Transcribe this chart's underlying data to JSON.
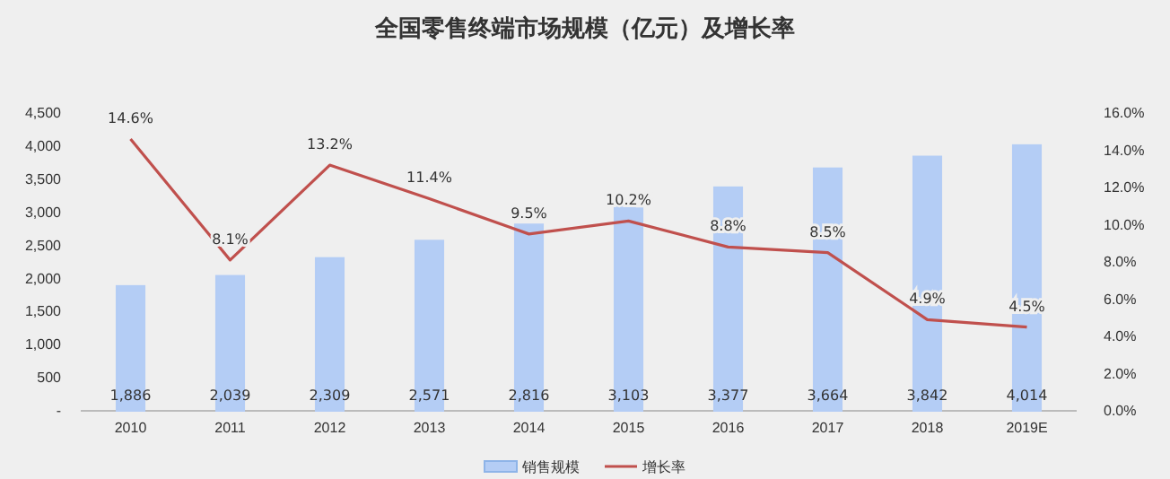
{
  "chart_data": {
    "type": "bar",
    "title": "全国零售终端市场规模（亿元）及增长率",
    "categories": [
      "2010",
      "2011",
      "2012",
      "2013",
      "2014",
      "2015",
      "2016",
      "2017",
      "2018",
      "2019E"
    ],
    "series": [
      {
        "name": "销售规模",
        "color": "#b4cdf5",
        "values": [
          1886,
          2039,
          2309,
          2571,
          2816,
          3103,
          3377,
          3664,
          3842,
          4014
        ],
        "value_labels": [
          "1,886",
          "2,039",
          "2,309",
          "2,571",
          "2,816",
          "3,103",
          "3,377",
          "3,664",
          "3,842",
          "4,014"
        ]
      },
      {
        "name": "增长率",
        "type": "line",
        "axis": "y2",
        "color": "#c0504d",
        "values": [
          14.6,
          8.1,
          13.2,
          11.4,
          9.5,
          10.2,
          8.8,
          8.5,
          4.9,
          4.5
        ],
        "value_labels": [
          "14.6%",
          "8.1%",
          "13.2%",
          "11.4%",
          "9.5%",
          "10.2%",
          "8.8%",
          "8.5%",
          "4.9%",
          "4.5%"
        ]
      }
    ],
    "ylim": [
      0,
      4500
    ],
    "yticks": [
      {
        "value": 0,
        "label": "-"
      },
      {
        "value": 500,
        "label": "500"
      },
      {
        "value": 1000,
        "label": "1,000"
      },
      {
        "value": 1500,
        "label": "1,500"
      },
      {
        "value": 2000,
        "label": "2,000"
      },
      {
        "value": 2500,
        "label": "2,500"
      },
      {
        "value": 3000,
        "label": "3,000"
      },
      {
        "value": 3500,
        "label": "3,500"
      },
      {
        "value": 4000,
        "label": "4,000"
      },
      {
        "value": 4500,
        "label": "4,500"
      }
    ],
    "y2lim": [
      0,
      16
    ],
    "y2ticks": [
      {
        "value": 0,
        "label": "0.0%"
      },
      {
        "value": 2,
        "label": "2.0%"
      },
      {
        "value": 4,
        "label": "4.0%"
      },
      {
        "value": 6,
        "label": "6.0%"
      },
      {
        "value": 8,
        "label": "8.0%"
      },
      {
        "value": 10,
        "label": "10.0%"
      },
      {
        "value": 12,
        "label": "12.0%"
      },
      {
        "value": 14,
        "label": "14.0%"
      },
      {
        "value": 16,
        "label": "16.0%"
      }
    ],
    "grid": false,
    "legend": "bottom"
  }
}
